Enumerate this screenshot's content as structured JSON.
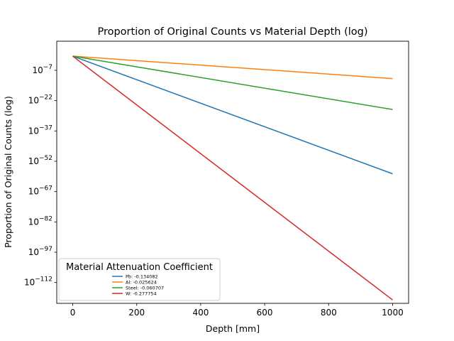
{
  "chart_data": {
    "type": "line",
    "title": "Proportion of Original Counts vs Material Depth (log)",
    "xlabel": "Depth [mm]",
    "ylabel": "Proportion of Original Counts (log)",
    "xlim": [
      -50,
      1050
    ],
    "ylim_log10": [
      -122.3,
      7.4
    ],
    "yscale": "log",
    "xticks": [
      0,
      200,
      400,
      600,
      800,
      1000
    ],
    "yticks": [
      {
        "exp": -7,
        "label": "10^-7"
      },
      {
        "exp": -22,
        "label": "10^-22"
      },
      {
        "exp": -37,
        "label": "10^-37"
      },
      {
        "exp": -52,
        "label": "10^-52"
      },
      {
        "exp": -67,
        "label": "10^-67"
      },
      {
        "exp": -82,
        "label": "10^-82"
      },
      {
        "exp": -97,
        "label": "10^-97"
      },
      {
        "exp": -112,
        "label": "10^-112"
      }
    ],
    "legend_title": "Material Attenuation Coefficient",
    "legend_position": "lower-left",
    "grid": false,
    "series": [
      {
        "name": "Pb: -0.134082",
        "color": "#1f77b4",
        "coefficient": -0.134082,
        "x": [
          0,
          1000
        ],
        "y": [
          "1e0",
          "1e-58.2"
        ]
      },
      {
        "name": "Al: -0.025624",
        "color": "#ff7f0e",
        "coefficient": -0.025624,
        "x": [
          0,
          1000
        ],
        "y": [
          "1e0",
          "1e-11.1"
        ]
      },
      {
        "name": "Steel: -0.060707",
        "color": "#2ca02c",
        "coefficient": -0.060707,
        "x": [
          0,
          1000
        ],
        "y": [
          "1e0",
          "1e-26.4"
        ]
      },
      {
        "name": "W: -0.277754",
        "color": "#d62728",
        "coefficient": -0.277754,
        "x": [
          0,
          1000
        ],
        "y": [
          "1e0",
          "1e-120.6"
        ]
      }
    ]
  }
}
